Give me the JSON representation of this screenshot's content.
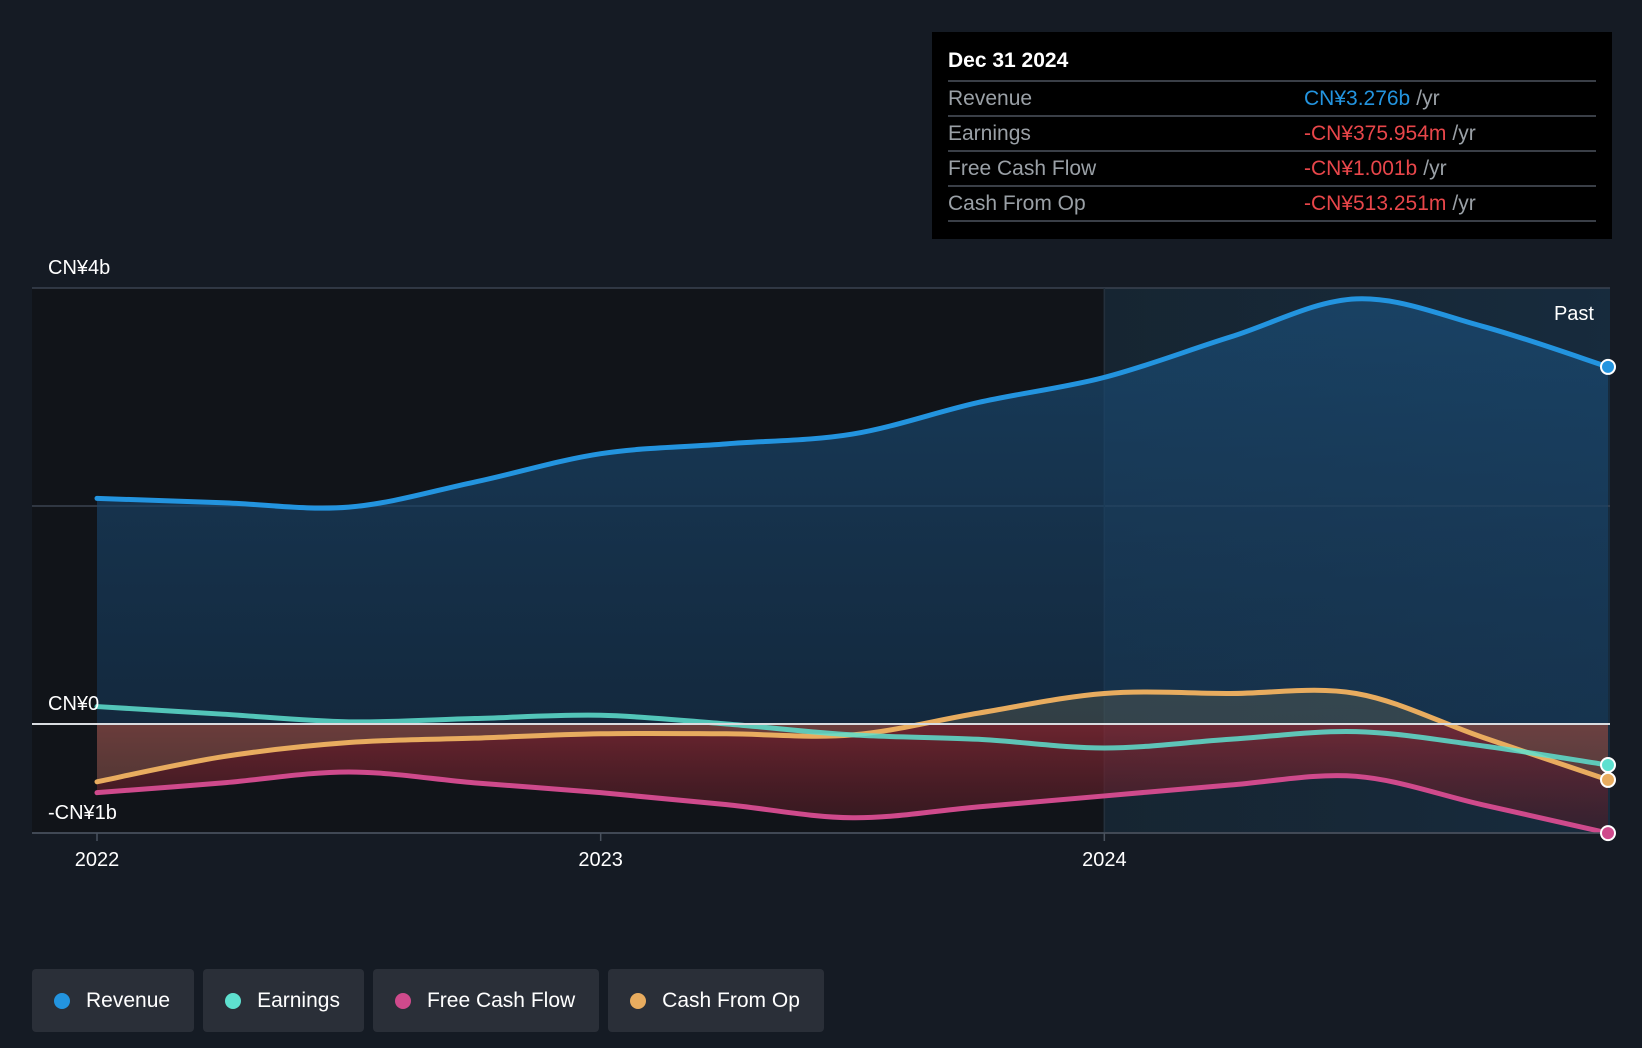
{
  "chart_data": {
    "type": "area",
    "title": "",
    "x_range": [
      2022.0,
      2025.0
    ],
    "x_ticks": [
      {
        "value": 2022,
        "label": "2022"
      },
      {
        "value": 2023,
        "label": "2023"
      },
      {
        "value": 2024,
        "label": "2024"
      }
    ],
    "y_range": [
      -1.0,
      4.0
    ],
    "y_unit": "CN¥ billions",
    "y_labels": [
      {
        "value": 4,
        "label": "CN¥4b"
      },
      {
        "value": 0,
        "label": "CN¥0"
      },
      {
        "value": -1,
        "label": "-CN¥1b"
      }
    ],
    "gridlines_y": [
      4,
      2,
      0,
      -1
    ],
    "highlight_start": 2024.0,
    "past_label": "Past",
    "series": [
      {
        "name": "Revenue",
        "color": "#2394df",
        "x": [
          2022.0,
          2022.25,
          2022.5,
          2022.75,
          2023.0,
          2023.25,
          2023.5,
          2023.75,
          2024.0,
          2024.25,
          2024.5,
          2024.75,
          2025.0
        ],
        "values": [
          2.07,
          2.03,
          1.99,
          2.22,
          2.48,
          2.57,
          2.66,
          2.95,
          3.18,
          3.55,
          3.9,
          3.65,
          3.276
        ]
      },
      {
        "name": "Earnings",
        "color": "#5ee0cf",
        "x": [
          2022.0,
          2022.25,
          2022.5,
          2022.75,
          2023.0,
          2023.25,
          2023.5,
          2023.75,
          2024.0,
          2024.25,
          2024.5,
          2024.75,
          2025.0
        ],
        "values": [
          0.16,
          0.09,
          0.02,
          0.05,
          0.08,
          0.0,
          -0.1,
          -0.14,
          -0.22,
          -0.14,
          -0.07,
          -0.2,
          -0.376
        ]
      },
      {
        "name": "Free Cash Flow",
        "color": "#cf4a8c",
        "x": [
          2022.0,
          2022.25,
          2022.5,
          2022.75,
          2023.0,
          2023.25,
          2023.5,
          2023.75,
          2024.0,
          2024.25,
          2024.5,
          2024.75,
          2025.0
        ],
        "values": [
          -0.63,
          -0.54,
          -0.44,
          -0.54,
          -0.63,
          -0.74,
          -0.86,
          -0.76,
          -0.66,
          -0.56,
          -0.48,
          -0.74,
          -1.001
        ]
      },
      {
        "name": "Cash From Op",
        "color": "#e8ac5f",
        "x": [
          2022.0,
          2022.25,
          2022.5,
          2022.75,
          2023.0,
          2023.25,
          2023.5,
          2023.75,
          2024.0,
          2024.25,
          2024.5,
          2024.75,
          2025.0
        ],
        "values": [
          -0.53,
          -0.3,
          -0.17,
          -0.13,
          -0.09,
          -0.09,
          -0.1,
          0.1,
          0.28,
          0.28,
          0.28,
          -0.12,
          -0.513
        ]
      }
    ]
  },
  "tooltip": {
    "date": "Dec 31 2024",
    "rows": [
      {
        "name": "Revenue",
        "value": "CN¥3.276b",
        "unit": "/yr",
        "color": "#2394df"
      },
      {
        "name": "Earnings",
        "value": "-CN¥375.954m",
        "unit": "/yr",
        "color": "#e8464a"
      },
      {
        "name": "Free Cash Flow",
        "value": "-CN¥1.001b",
        "unit": "/yr",
        "color": "#e8464a"
      },
      {
        "name": "Cash From Op",
        "value": "-CN¥513.251m",
        "unit": "/yr",
        "color": "#e8464a"
      }
    ]
  },
  "legend": [
    {
      "label": "Revenue",
      "color": "#2394df"
    },
    {
      "label": "Earnings",
      "color": "#5ee0cf"
    },
    {
      "label": "Free Cash Flow",
      "color": "#cf4a8c"
    },
    {
      "label": "Cash From Op",
      "color": "#e8ac5f"
    }
  ]
}
